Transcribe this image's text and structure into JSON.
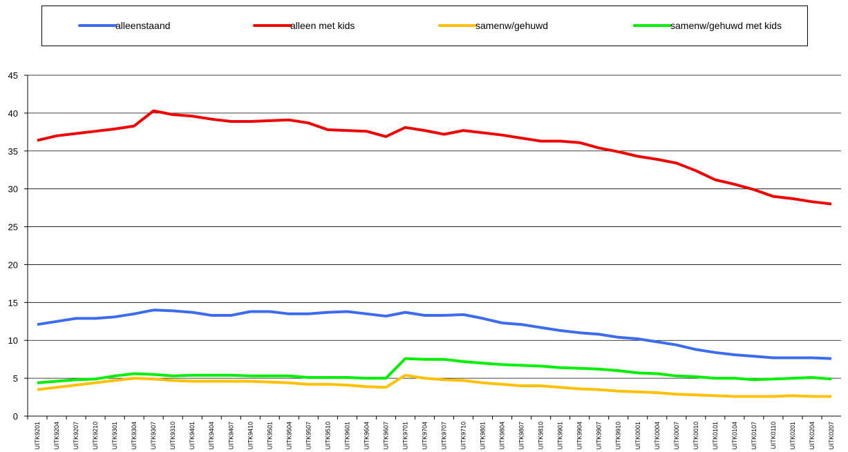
{
  "chart_data": {
    "type": "line",
    "categories": [
      "UITK9201",
      "UITK9204",
      "UITK9207",
      "UITK9210",
      "UITK9301",
      "UITK9304",
      "UITK9307",
      "UITK9310",
      "UITK9401",
      "UITK9404",
      "UITK9407",
      "UITK9410",
      "UITK9501",
      "UITK9504",
      "UITK9507",
      "UITK9510",
      "UITK9601",
      "UITK9604",
      "UITK9607",
      "UITK9701",
      "UITK9704",
      "UITK9707",
      "UITK9710",
      "UITK9801",
      "UITK9804",
      "UITK9807",
      "UITK9810",
      "UITK9901",
      "UITK9904",
      "UITK9907",
      "UITK9910",
      "UITK0001",
      "UITK0004",
      "UITK0007",
      "UITK0010",
      "UITK0101",
      "UITK0104",
      "UITK0107",
      "UITK0110",
      "UITK0201",
      "UITK0204",
      "UITK0207"
    ],
    "series": [
      {
        "name": "alleenstaand",
        "color": "#3b6cf0",
        "values": [
          12.1,
          12.5,
          12.9,
          12.9,
          13.1,
          13.5,
          14.0,
          13.9,
          13.7,
          13.3,
          13.3,
          13.8,
          13.8,
          13.5,
          13.5,
          13.7,
          13.8,
          13.5,
          13.2,
          13.7,
          13.3,
          13.3,
          13.4,
          12.9,
          12.3,
          12.1,
          11.7,
          11.3,
          11.0,
          10.8,
          10.4,
          10.2,
          9.8,
          9.4,
          8.8,
          8.4,
          8.1,
          7.9,
          7.7,
          7.7,
          7.7,
          7.6
        ]
      },
      {
        "name": "alleen met kids",
        "color": "#f00000",
        "values": [
          36.4,
          37.0,
          37.3,
          37.6,
          37.9,
          38.3,
          40.3,
          39.8,
          39.6,
          39.2,
          38.9,
          38.9,
          39.0,
          39.1,
          38.7,
          37.8,
          37.7,
          37.6,
          36.9,
          38.1,
          37.7,
          37.2,
          37.7,
          37.4,
          37.1,
          36.7,
          36.3,
          36.3,
          36.1,
          35.4,
          34.9,
          34.3,
          33.9,
          33.4,
          32.4,
          31.2,
          30.6,
          29.9,
          29.0,
          28.7,
          28.3,
          28.0
        ]
      },
      {
        "name": "samenw/gehuwd",
        "color": "#ffc000",
        "values": [
          3.5,
          3.8,
          4.1,
          4.4,
          4.7,
          5.0,
          4.9,
          4.7,
          4.6,
          4.6,
          4.6,
          4.6,
          4.5,
          4.4,
          4.2,
          4.2,
          4.1,
          3.9,
          3.8,
          5.4,
          5.0,
          4.8,
          4.7,
          4.4,
          4.2,
          4.0,
          4.0,
          3.8,
          3.6,
          3.5,
          3.3,
          3.2,
          3.1,
          2.9,
          2.8,
          2.7,
          2.6,
          2.6,
          2.6,
          2.7,
          2.6,
          2.6
        ]
      },
      {
        "name": "samenw/gehuwd met kids",
        "color": "#00ee00",
        "values": [
          4.4,
          4.6,
          4.8,
          4.9,
          5.3,
          5.6,
          5.5,
          5.3,
          5.4,
          5.4,
          5.4,
          5.3,
          5.3,
          5.3,
          5.1,
          5.1,
          5.1,
          5.0,
          5.0,
          7.6,
          7.5,
          7.5,
          7.2,
          7.0,
          6.8,
          6.7,
          6.6,
          6.4,
          6.3,
          6.2,
          6.0,
          5.7,
          5.6,
          5.3,
          5.2,
          5.0,
          5.0,
          4.8,
          4.9,
          5.0,
          5.1,
          4.9
        ]
      }
    ],
    "ylim": [
      0,
      45
    ],
    "yticks": [
      0,
      5,
      10,
      15,
      20,
      25,
      30,
      35,
      40,
      45
    ],
    "grid": true,
    "legend": "top"
  }
}
